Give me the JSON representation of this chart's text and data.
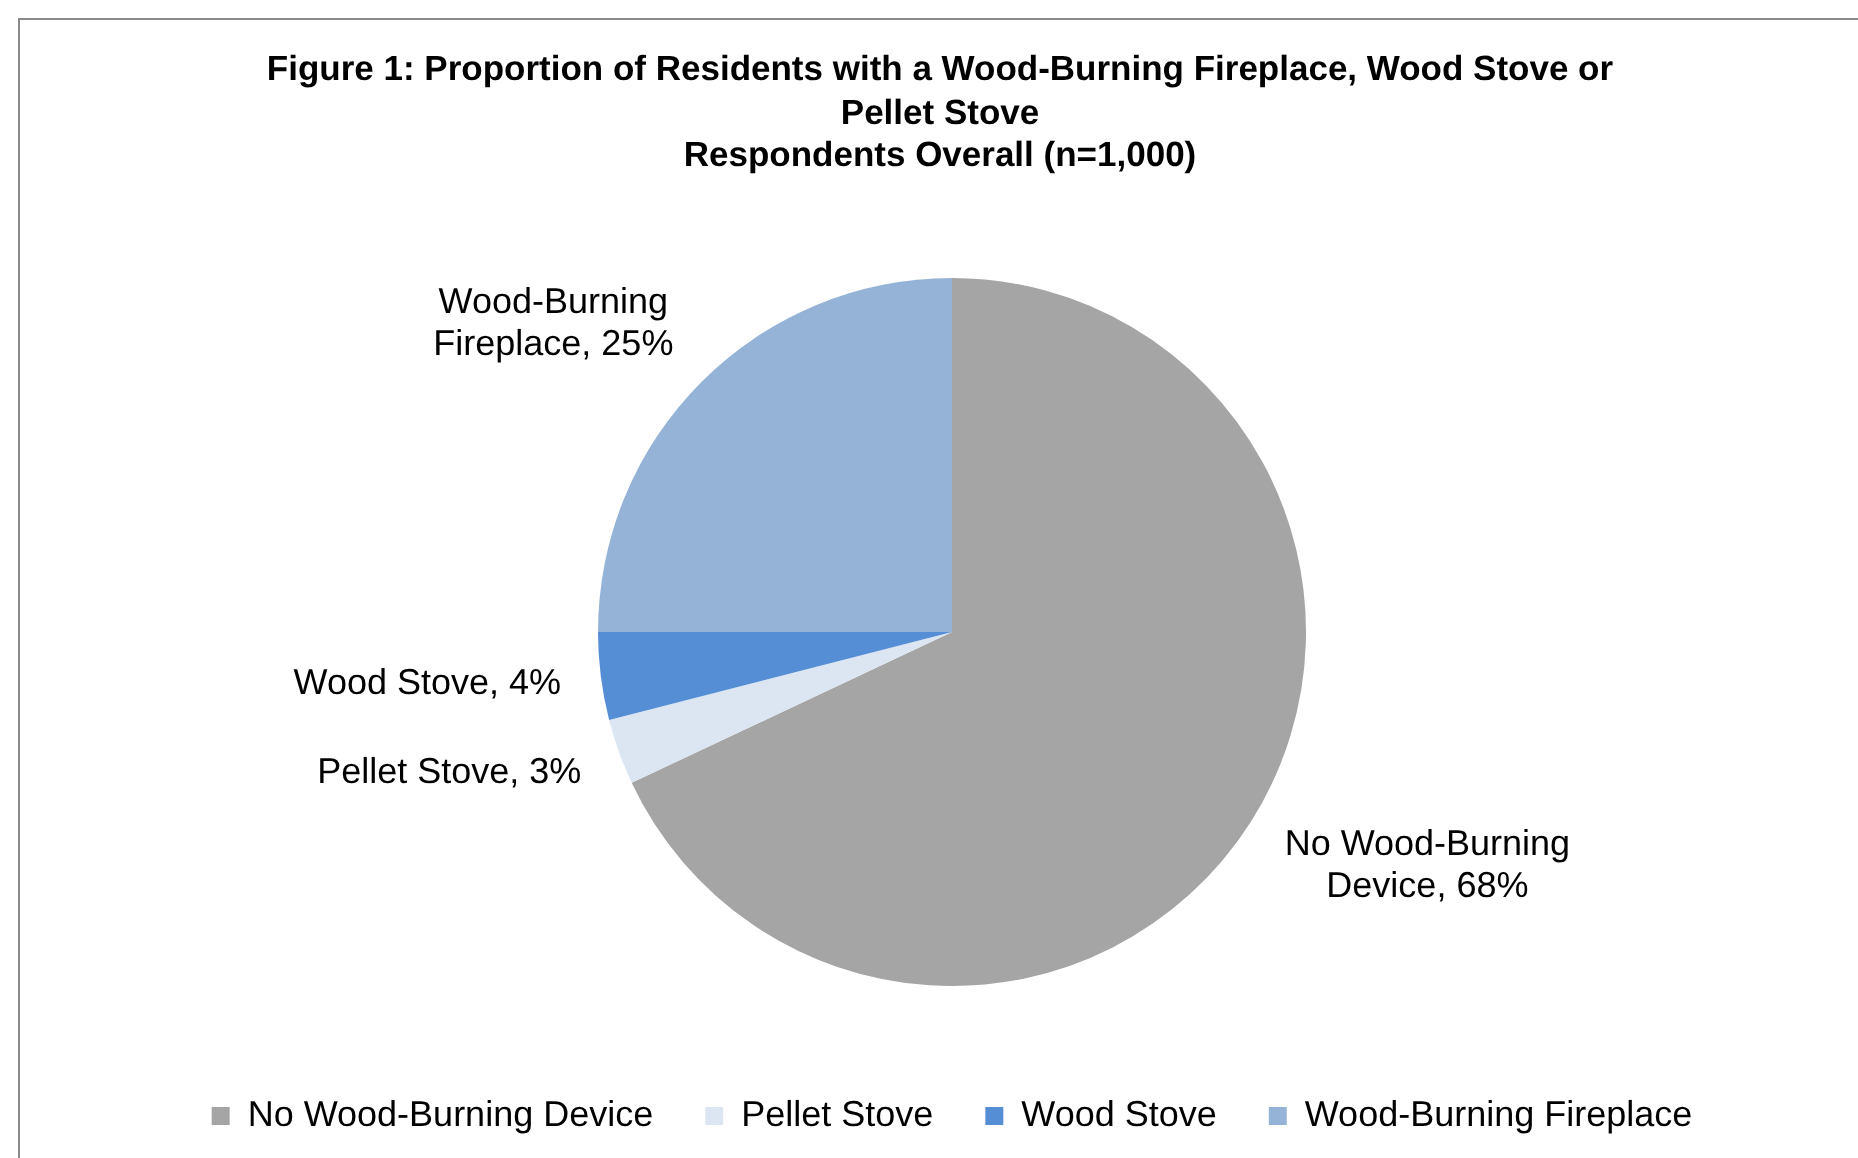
{
  "chart_data": {
    "type": "pie",
    "title": "Figure 1: Proportion of Residents with a Wood-Burning Fireplace, Wood Stove or Pellet Stove",
    "subtitle": "Respondents Overall (n=1,000)",
    "categories": [
      "No Wood-Burning Device",
      "Pellet Stove",
      "Wood Stove",
      "Wood-Burning Fireplace"
    ],
    "values": [
      68,
      3,
      4,
      25
    ],
    "colors": [
      "#a5a5a5",
      "#dce6f2",
      "#558ed5",
      "#95b3d7"
    ],
    "value_labels": [
      "No Wood-Burning Device, 68%",
      "Pellet Stove, 3%",
      "Wood Stove, 4%",
      "Wood-Burning Fireplace, 25%"
    ],
    "legend": "bottom"
  }
}
